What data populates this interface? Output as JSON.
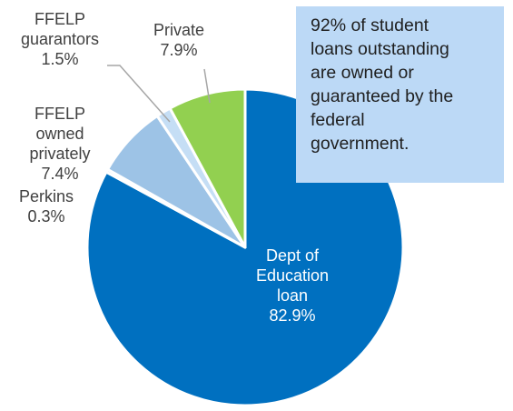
{
  "callout": {
    "lines": [
      "92% of student",
      "loans outstanding",
      "are owned or",
      "guaranteed by the",
      "federal",
      "government."
    ]
  },
  "chart_data": {
    "type": "pie",
    "title": "",
    "slices": [
      {
        "key": "dept",
        "label_lines": [
          "Dept of",
          "Education",
          "loan"
        ],
        "value": 82.9,
        "value_label": "82.9%",
        "color": "#0070c0"
      },
      {
        "key": "perkins",
        "label_lines": [
          "Perkins"
        ],
        "value": 0.3,
        "value_label": "0.3%",
        "color": "#bdd7ee"
      },
      {
        "key": "ffelp-owned",
        "label_lines": [
          "FFELP",
          "owned",
          "privately"
        ],
        "value": 7.4,
        "value_label": "7.4%",
        "color": "#9dc3e6"
      },
      {
        "key": "ffelp-guarantors",
        "label_lines": [
          "FFELP",
          "guarantors"
        ],
        "value": 1.5,
        "value_label": "1.5%",
        "color": "#c5def5"
      },
      {
        "key": "private",
        "label_lines": [
          "Private"
        ],
        "value": 7.9,
        "value_label": "7.9%",
        "color": "#92d050"
      }
    ]
  }
}
